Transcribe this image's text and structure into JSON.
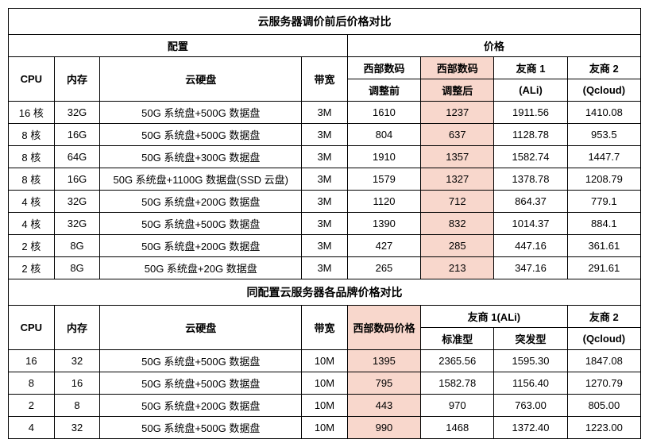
{
  "table1": {
    "title": "云服务器调价前后价格对比",
    "group_config": "配置",
    "group_price": "价格",
    "headers": {
      "cpu": "CPU",
      "mem": "内存",
      "disk": "云硬盘",
      "bw": "带宽",
      "west_before_l1": "西部数码",
      "west_before_l2": "调整前",
      "west_after_l1": "西部数码",
      "west_after_l2": "调整后",
      "ali_l1": "友商 1",
      "ali_l2": "(ALi)",
      "qc_l1": "友商 2",
      "qc_l2": "(Qcloud)"
    },
    "rows": [
      {
        "cpu": "16 核",
        "mem": "32G",
        "disk": "50G 系统盘+500G 数据盘",
        "bw": "3M",
        "before": "1610",
        "after": "1237",
        "ali": "1911.56",
        "qc": "1410.08"
      },
      {
        "cpu": "8 核",
        "mem": "16G",
        "disk": "50G 系统盘+500G 数据盘",
        "bw": "3M",
        "before": "804",
        "after": "637",
        "ali": "1128.78",
        "qc": "953.5"
      },
      {
        "cpu": "8 核",
        "mem": "64G",
        "disk": "50G 系统盘+300G 数据盘",
        "bw": "3M",
        "before": "1910",
        "after": "1357",
        "ali": "1582.74",
        "qc": "1447.7"
      },
      {
        "cpu": "8 核",
        "mem": "16G",
        "disk": "50G 系统盘+1100G 数据盘(SSD 云盘)",
        "bw": "3M",
        "before": "1579",
        "after": "1327",
        "ali": "1378.78",
        "qc": "1208.79"
      },
      {
        "cpu": "4 核",
        "mem": "32G",
        "disk": "50G 系统盘+200G 数据盘",
        "bw": "3M",
        "before": "1120",
        "after": "712",
        "ali": "864.37",
        "qc": "779.1"
      },
      {
        "cpu": "4 核",
        "mem": "32G",
        "disk": "50G 系统盘+500G 数据盘",
        "bw": "3M",
        "before": "1390",
        "after": "832",
        "ali": "1014.37",
        "qc": "884.1"
      },
      {
        "cpu": "2 核",
        "mem": "8G",
        "disk": "50G 系统盘+200G 数据盘",
        "bw": "3M",
        "before": "427",
        "after": "285",
        "ali": "447.16",
        "qc": "361.61"
      },
      {
        "cpu": "2 核",
        "mem": "8G",
        "disk": "50G 系统盘+20G 数据盘",
        "bw": "3M",
        "before": "265",
        "after": "213",
        "ali": "347.16",
        "qc": "291.61"
      }
    ]
  },
  "table2": {
    "title": "同配置云服务器各品牌价格对比",
    "headers": {
      "cpu": "CPU",
      "mem": "内存",
      "disk": "云硬盘",
      "bw": "带宽",
      "west": "西部数码价格",
      "ali_group": "友商 1(ALi)",
      "ali_std": "标准型",
      "ali_burst": "突发型",
      "qc_l1": "友商 2",
      "qc_l2": "(Qcloud)"
    },
    "rows": [
      {
        "cpu": "16",
        "mem": "32",
        "disk": "50G 系统盘+500G 数据盘",
        "bw": "10M",
        "west": "1395",
        "ali_std": "2365.56",
        "ali_burst": "1595.30",
        "qc": "1847.08"
      },
      {
        "cpu": "8",
        "mem": "16",
        "disk": "50G 系统盘+500G 数据盘",
        "bw": "10M",
        "west": "795",
        "ali_std": "1582.78",
        "ali_burst": "1156.40",
        "qc": "1270.79"
      },
      {
        "cpu": "2",
        "mem": "8",
        "disk": "50G 系统盘+200G 数据盘",
        "bw": "10M",
        "west": "443",
        "ali_std": "970",
        "ali_burst": "763.00",
        "qc": "805.00"
      },
      {
        "cpu": "4",
        "mem": "32",
        "disk": "50G 系统盘+500G 数据盘",
        "bw": "10M",
        "west": "990",
        "ali_std": "1468",
        "ali_burst": "1372.40",
        "qc": "1223.00"
      }
    ]
  },
  "style": {
    "highlight_bg": "#f8d7cc",
    "border_color": "#000000",
    "font_size": 13
  }
}
